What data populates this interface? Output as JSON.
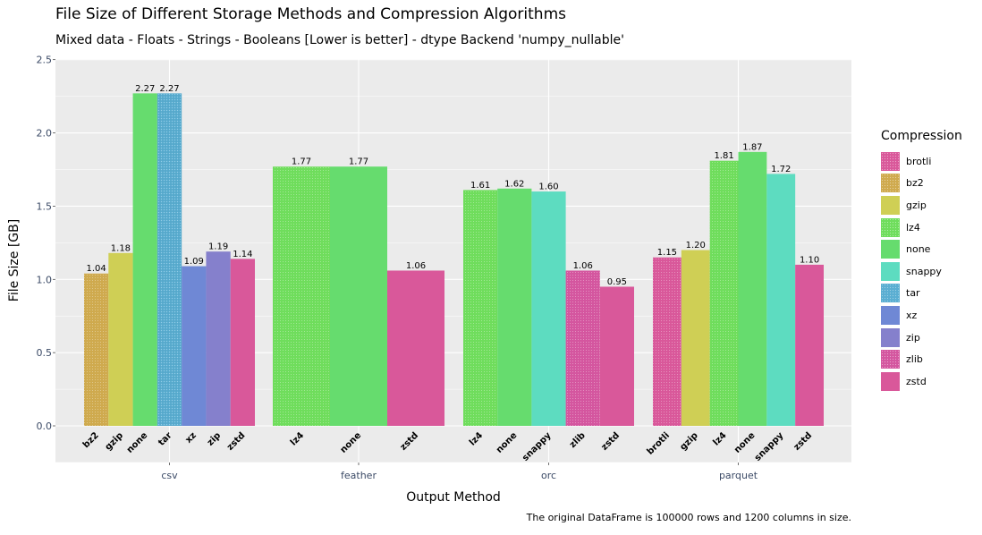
{
  "chart_data": {
    "type": "bar",
    "title": "File Size of Different Storage Methods and Compression Algorithms",
    "subtitle": "Mixed data - Floats - Strings - Booleans [Lower is better] - dtype Backend 'numpy_nullable'",
    "caption": "The original DataFrame is 100000 rows and 1200 columns in size.",
    "xlabel": "Output Method",
    "ylabel": "File Size [GB]",
    "ylim": [
      -0.25,
      2.5
    ],
    "yticks": [
      "0.0",
      "0.5",
      "1.0",
      "1.5",
      "2.0",
      "2.5"
    ],
    "grid": true,
    "legend_position": "right",
    "legend_title": "Compression",
    "legend": [
      {
        "name": "brotli",
        "color": "#d9589a"
      },
      {
        "name": "bz2",
        "color": "#cfaa4e"
      },
      {
        "name": "gzip",
        "color": "#cfcf55"
      },
      {
        "name": "lz4",
        "color": "#6fdd5c"
      },
      {
        "name": "none",
        "color": "#66dc6e"
      },
      {
        "name": "snappy",
        "color": "#5ddcc0"
      },
      {
        "name": "tar",
        "color": "#5aaed2"
      },
      {
        "name": "xz",
        "color": "#6f88d5"
      },
      {
        "name": "zip",
        "color": "#8580cc"
      },
      {
        "name": "zlib",
        "color": "#d4569f"
      },
      {
        "name": "zstd",
        "color": "#d9589a"
      }
    ],
    "groups": [
      {
        "name": "csv",
        "bars": [
          {
            "compression": "bz2",
            "value": 1.04,
            "label": "1.04"
          },
          {
            "compression": "gzip",
            "value": 1.18,
            "label": "1.18"
          },
          {
            "compression": "none",
            "value": 2.27,
            "label": "2.27"
          },
          {
            "compression": "tar",
            "value": 2.27,
            "label": "2.27"
          },
          {
            "compression": "xz",
            "value": 1.09,
            "label": "1.09"
          },
          {
            "compression": "zip",
            "value": 1.19,
            "label": "1.19"
          },
          {
            "compression": "zstd",
            "value": 1.14,
            "label": "1.14"
          }
        ]
      },
      {
        "name": "feather",
        "bars": [
          {
            "compression": "lz4",
            "value": 1.77,
            "label": "1.77"
          },
          {
            "compression": "none",
            "value": 1.77,
            "label": "1.77"
          },
          {
            "compression": "zstd",
            "value": 1.06,
            "label": "1.06"
          }
        ]
      },
      {
        "name": "orc",
        "bars": [
          {
            "compression": "lz4",
            "value": 1.61,
            "label": "1.61"
          },
          {
            "compression": "none",
            "value": 1.62,
            "label": "1.62"
          },
          {
            "compression": "snappy",
            "value": 1.6,
            "label": "1.60"
          },
          {
            "compression": "zlib",
            "value": 1.06,
            "label": "1.06"
          },
          {
            "compression": "zstd",
            "value": 0.95,
            "label": "0.95"
          }
        ]
      },
      {
        "name": "parquet",
        "bars": [
          {
            "compression": "brotli",
            "value": 1.15,
            "label": "1.15"
          },
          {
            "compression": "gzip",
            "value": 1.2,
            "label": "1.20"
          },
          {
            "compression": "lz4",
            "value": 1.81,
            "label": "1.81"
          },
          {
            "compression": "none",
            "value": 1.87,
            "label": "1.87"
          },
          {
            "compression": "snappy",
            "value": 1.72,
            "label": "1.72"
          },
          {
            "compression": "zstd",
            "value": 1.1,
            "label": "1.10"
          }
        ]
      }
    ]
  }
}
